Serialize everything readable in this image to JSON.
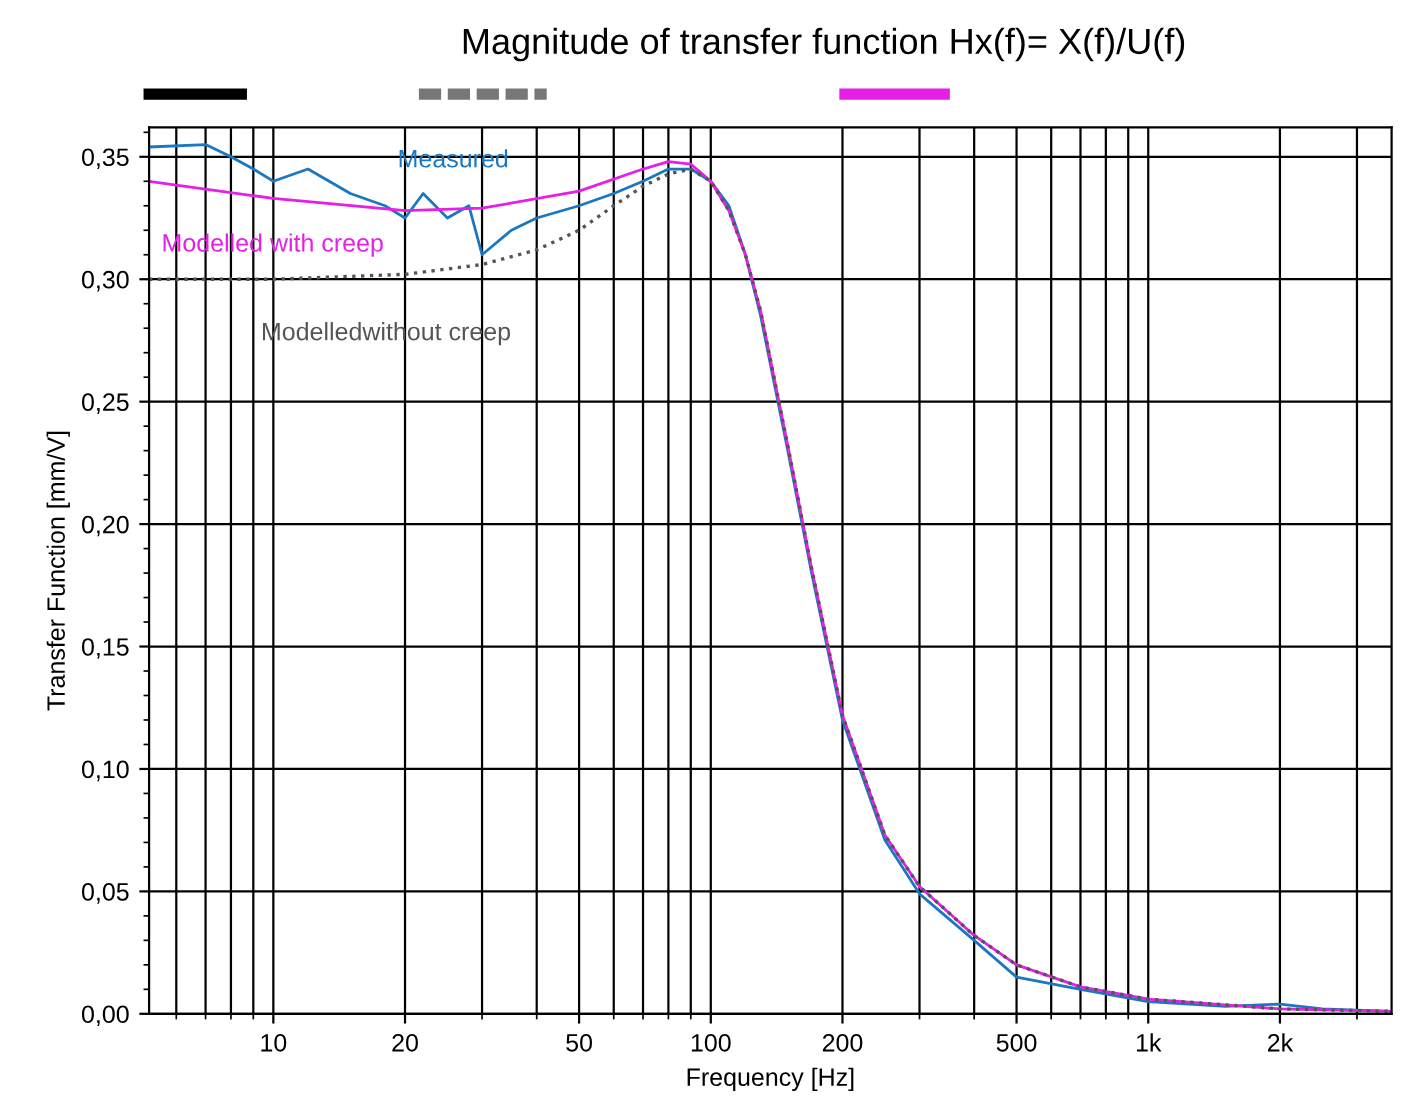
{
  "chart_data": {
    "type": "line",
    "title": "Magnitude of transfer function Hx(f)= X(f)/U(f)",
    "xlabel": "Frequency [Hz]",
    "ylabel": "Transfer Function [mm/V]",
    "log": "x",
    "grid": true,
    "legend": false,
    "marker": "none",
    "xlim": [
      5.2,
      3600
    ],
    "ylim": [
      0,
      0.362
    ],
    "xticks": [
      10,
      20,
      50,
      100,
      200,
      500,
      {
        "value": 1000,
        "label": "1k"
      },
      {
        "value": 2000,
        "label": "2k"
      }
    ],
    "yticks": [
      {
        "value": 0,
        "label": "0,00"
      },
      {
        "value": 0.05,
        "label": "0,05"
      },
      {
        "value": 0.1,
        "label": "0,10"
      },
      {
        "value": 0.15,
        "label": "0,15"
      },
      {
        "value": 0.2,
        "label": "0,20"
      },
      {
        "value": 0.25,
        "label": "0,25"
      },
      {
        "value": 0.3,
        "label": "0,30"
      },
      {
        "value": 0.35,
        "label": "0,35"
      }
    ],
    "series": [
      {
        "name": "Measured",
        "color": "#1a78c2",
        "line_style": "solid",
        "x": [
          5.2,
          7,
          8,
          9,
          10,
          12,
          15,
          18,
          20,
          22,
          25,
          28,
          30,
          35,
          40,
          50,
          60,
          70,
          80,
          90,
          100,
          110,
          120,
          130,
          150,
          170,
          200,
          250,
          300,
          400,
          500,
          700,
          1000,
          1500,
          2000,
          2500,
          3600
        ],
        "values": [
          0.354,
          0.355,
          0.35,
          0.345,
          0.34,
          0.345,
          0.335,
          0.33,
          0.325,
          0.335,
          0.325,
          0.33,
          0.31,
          0.32,
          0.325,
          0.33,
          0.335,
          0.34,
          0.345,
          0.345,
          0.34,
          0.33,
          0.31,
          0.285,
          0.23,
          0.18,
          0.12,
          0.071,
          0.049,
          0.03,
          0.015,
          0.01,
          0.005,
          0.003,
          0.004,
          0.002,
          0.001
        ]
      },
      {
        "name": "Modelled with creep",
        "color": "#e61ee6",
        "line_style": "solid",
        "x": [
          5.2,
          10,
          20,
          30,
          50,
          70,
          80,
          90,
          100,
          110,
          120,
          130,
          150,
          170,
          200,
          250,
          300,
          400,
          500,
          700,
          1000,
          2000,
          3600
        ],
        "values": [
          0.34,
          0.333,
          0.328,
          0.329,
          0.336,
          0.345,
          0.348,
          0.347,
          0.34,
          0.328,
          0.31,
          0.287,
          0.232,
          0.182,
          0.122,
          0.073,
          0.052,
          0.032,
          0.02,
          0.011,
          0.006,
          0.002,
          0.001
        ]
      },
      {
        "name": "Modelledwithout creep",
        "color": "#555555",
        "line_style": "dotted",
        "x": [
          5.2,
          10,
          20,
          30,
          40,
          50,
          60,
          70,
          80,
          90,
          100,
          110,
          120,
          130,
          150,
          170,
          200,
          250,
          300,
          400,
          500,
          700,
          1000,
          2000,
          3600
        ],
        "values": [
          0.3,
          0.3,
          0.302,
          0.306,
          0.312,
          0.32,
          0.33,
          0.338,
          0.343,
          0.345,
          0.34,
          0.328,
          0.31,
          0.287,
          0.232,
          0.182,
          0.122,
          0.073,
          0.052,
          0.032,
          0.02,
          0.011,
          0.006,
          0.002,
          0.001
        ]
      }
    ]
  }
}
